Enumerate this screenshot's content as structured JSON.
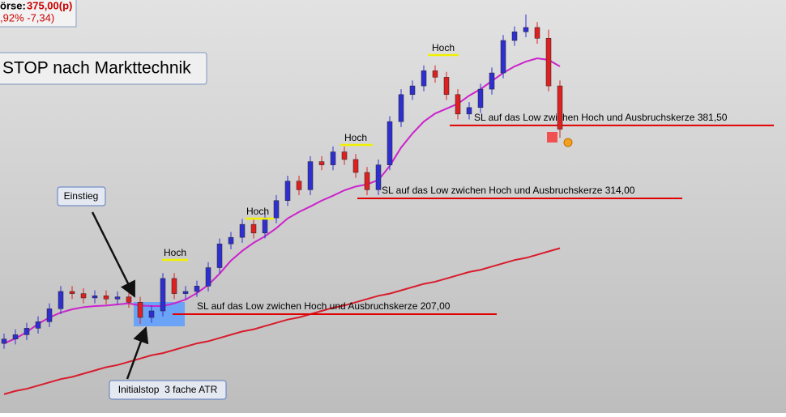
{
  "chart_data": {
    "type": "candlestick",
    "title": "STOP nach Markttechnik",
    "info": {
      "label": "örse:",
      "price": "375,00(p)",
      "change": ",92%  -7,34)"
    },
    "ylim": [
      115.7,
      497.4
    ],
    "up_color": "#2f2fd0",
    "down_color": "#dd2020",
    "open": [
      180,
      184,
      188,
      194,
      200,
      212,
      228,
      226,
      222,
      224,
      221,
      223,
      218,
      204,
      210,
      240,
      226,
      228,
      233,
      250,
      272,
      278,
      290,
      282,
      296,
      312,
      330,
      322,
      348,
      345,
      357,
      350,
      338,
      322,
      345,
      385,
      410,
      418,
      432,
      426,
      410,
      392,
      398,
      415,
      430,
      460,
      468,
      472,
      462,
      418
    ],
    "high": [
      189,
      193,
      199,
      205,
      217,
      233,
      233,
      231,
      229,
      229,
      228,
      228,
      223,
      215,
      245,
      245,
      233,
      238,
      255,
      277,
      283,
      295,
      295,
      301,
      317,
      335,
      335,
      353,
      353,
      362,
      362,
      355,
      343,
      350,
      390,
      415,
      423,
      437,
      437,
      431,
      415,
      403,
      420,
      435,
      465,
      473,
      484,
      477,
      470,
      423
    ],
    "low": [
      175,
      179,
      183,
      189,
      195,
      207,
      221,
      217,
      217,
      216,
      216,
      213,
      198,
      199,
      205,
      221,
      221,
      223,
      228,
      245,
      267,
      273,
      277,
      277,
      291,
      307,
      317,
      317,
      340,
      340,
      345,
      333,
      317,
      317,
      340,
      380,
      405,
      413,
      421,
      405,
      387,
      387,
      393,
      410,
      425,
      455,
      463,
      457,
      413,
      370
    ],
    "close": [
      184,
      188,
      194,
      200,
      212,
      228,
      226,
      222,
      224,
      221,
      223,
      218,
      204,
      210,
      240,
      226,
      228,
      233,
      250,
      272,
      278,
      290,
      282,
      296,
      312,
      330,
      322,
      348,
      345,
      357,
      350,
      338,
      322,
      345,
      385,
      410,
      418,
      432,
      426,
      410,
      392,
      398,
      415,
      430,
      460,
      468,
      472,
      462,
      418,
      378
    ],
    "moving_averages": [
      {
        "color": "#cc22cc",
        "values": [
          180,
          184.5,
          190.5,
          198,
          204,
          208.5,
          211.5,
          213.5,
          214.5,
          215,
          216,
          217,
          215,
          214.5,
          214.5,
          217,
          220.5,
          226.5,
          234,
          244.5,
          256.5,
          265.5,
          273,
          279,
          286.5,
          295.5,
          301.5,
          306.5,
          312,
          316.5,
          321.5,
          325,
          327,
          331,
          344,
          361,
          374,
          385,
          392.5,
          397,
          401.5,
          409,
          415,
          422.5,
          430,
          436,
          440.5,
          443.5,
          442,
          436
        ]
      },
      {
        "color": "#d81c2c",
        "values": [
          133,
          136,
          138,
          141,
          144,
          147,
          149,
          152,
          155,
          158,
          160,
          163,
          166,
          169,
          171,
          174,
          177,
          180,
          182,
          185,
          188,
          191,
          193,
          196,
          199,
          202,
          204,
          207,
          210,
          213,
          215,
          218,
          221,
          224,
          226,
          229,
          232,
          235,
          237,
          240,
          243,
          246,
          248,
          251,
          254,
          257,
          259,
          262,
          265,
          268
        ]
      }
    ],
    "levels": [
      {
        "value": 207,
        "label": "SL auf das Low zwichen Hoch und Ausbruchskerze 207,00",
        "color": "#e00000"
      },
      {
        "value": 314,
        "label": "SL auf das Low zwichen Hoch und Ausbruchskerze 314,00",
        "color": "#e00000"
      },
      {
        "value": 381.5,
        "label": "SL auf das Low zwichen Hoch und Ausbruchskerze 381,50",
        "color": "#e00000"
      }
    ],
    "annotations": [
      "Hoch",
      "Hoch",
      "Hoch",
      "Hoch"
    ],
    "callouts": {
      "entry": "Einstieg",
      "stop": "Initialstop  3 fache ATR"
    }
  }
}
